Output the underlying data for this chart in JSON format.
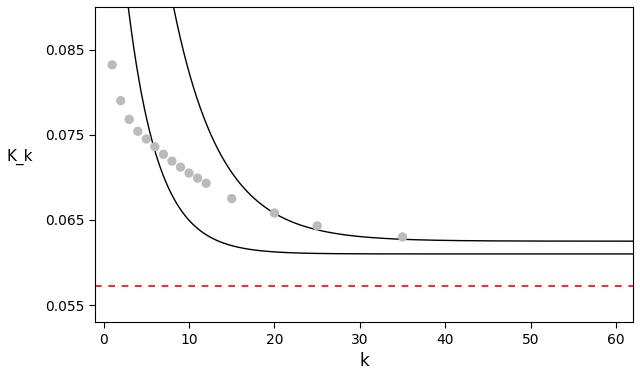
{
  "title": "",
  "xlabel": "k",
  "ylabel": "K_k",
  "xlim": [
    -1,
    62
  ],
  "ylim": [
    0.053,
    0.09
  ],
  "yticks": [
    0.055,
    0.065,
    0.075,
    0.085
  ],
  "xticks": [
    0,
    10,
    20,
    30,
    40,
    50,
    60
  ],
  "red_line_y": 0.0572,
  "dot_x": [
    1,
    2,
    3,
    4,
    5,
    6,
    7,
    8,
    9,
    10,
    11,
    12,
    15,
    20,
    25,
    35
  ],
  "dot_y": [
    0.0832,
    0.079,
    0.0768,
    0.0754,
    0.0745,
    0.0736,
    0.0727,
    0.0719,
    0.0712,
    0.0705,
    0.0699,
    0.0693,
    0.0675,
    0.0658,
    0.0643,
    0.063
  ],
  "curve_upper_a": 0.12,
  "curve_upper_b": 0.18,
  "curve_upper_c": 0.0625,
  "curve_lower_a": 0.065,
  "curve_lower_b": 0.28,
  "curve_lower_c": 0.061,
  "dot_color": "#bbbbbb",
  "dot_size": 45,
  "line_color": "#000000",
  "red_color": "#ff0000",
  "bg_color": "#ffffff"
}
